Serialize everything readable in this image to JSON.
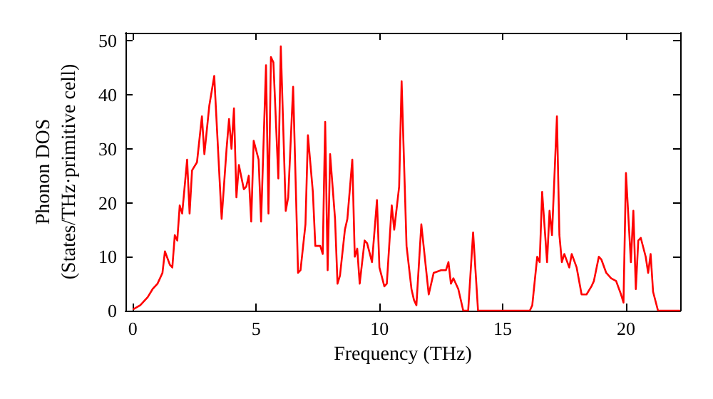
{
  "chart_data": {
    "type": "line",
    "xlabel": "Frequency (THz)",
    "ylabel": "Phonon DOS\n(States/THz·primitive cell)",
    "xlim": [
      -0.3,
      22.2
    ],
    "ylim": [
      0,
      51.5
    ],
    "xticks": [
      0,
      5,
      10,
      15,
      20
    ],
    "yticks": [
      0,
      10,
      20,
      30,
      40,
      50
    ],
    "grid": false,
    "marker": "none",
    "line_style": "solid",
    "series": [
      {
        "color": "#ff0000",
        "x": [
          0,
          0.3,
          0.6,
          0.8,
          1.0,
          1.2,
          1.3,
          1.5,
          1.6,
          1.7,
          1.8,
          1.9,
          2.0,
          2.2,
          2.3,
          2.4,
          2.6,
          2.8,
          2.9,
          3.1,
          3.3,
          3.6,
          3.8,
          3.9,
          4.0,
          4.1,
          4.2,
          4.3,
          4.5,
          4.6,
          4.7,
          4.8,
          4.9,
          5.1,
          5.2,
          5.4,
          5.5,
          5.6,
          5.7,
          5.9,
          6.0,
          6.2,
          6.3,
          6.5,
          6.7,
          6.8,
          7.0,
          7.1,
          7.3,
          7.4,
          7.6,
          7.7,
          7.8,
          7.9,
          8.0,
          8.2,
          8.3,
          8.4,
          8.6,
          8.7,
          8.9,
          9.0,
          9.1,
          9.2,
          9.4,
          9.5,
          9.7,
          9.9,
          10.0,
          10.2,
          10.3,
          10.5,
          10.6,
          10.8,
          10.9,
          11.1,
          11.3,
          11.4,
          11.5,
          11.7,
          12.0,
          12.2,
          12.5,
          12.7,
          12.8,
          12.9,
          13.0,
          13.2,
          13.4,
          13.6,
          13.8,
          14.0,
          16.1,
          16.2,
          16.4,
          16.5,
          16.6,
          16.8,
          16.9,
          17.0,
          17.2,
          17.3,
          17.4,
          17.5,
          17.7,
          17.8,
          18.0,
          18.2,
          18.4,
          18.6,
          18.7,
          18.9,
          19.0,
          19.2,
          19.4,
          19.6,
          19.8,
          19.9,
          20.0,
          20.2,
          20.3,
          20.4,
          20.5,
          20.6,
          20.8,
          20.9,
          21.0,
          21.1,
          21.3,
          22.2
        ],
        "values": [
          0.2,
          1,
          2.5,
          4,
          5,
          7,
          11,
          8.5,
          8,
          14,
          13,
          19.5,
          18,
          28,
          18,
          26,
          27.5,
          36,
          29,
          38,
          43.5,
          17,
          30,
          35.5,
          30,
          37.5,
          21,
          27,
          22.5,
          23,
          25,
          16.5,
          31.5,
          28,
          16.5,
          45.5,
          18,
          47,
          46,
          24.5,
          49,
          18.5,
          21,
          41.5,
          7,
          7.5,
          16,
          32.5,
          22,
          12,
          12,
          10.5,
          35,
          7.5,
          29,
          17,
          5,
          6.5,
          15,
          17,
          28,
          10,
          11.5,
          5,
          13,
          12.5,
          9,
          20.5,
          8,
          4.5,
          5,
          19.5,
          15,
          23,
          42.5,
          12,
          4,
          2,
          1,
          16,
          3,
          7,
          7.5,
          7.5,
          9,
          5,
          6,
          4,
          0,
          0,
          14.5,
          0,
          0,
          1,
          10,
          9,
          22,
          9,
          18.5,
          14,
          36,
          14,
          9,
          10.5,
          8,
          10.5,
          8,
          3,
          3,
          4.5,
          5.5,
          10,
          9.5,
          7,
          6,
          5.5,
          3,
          1.5,
          25.5,
          9,
          18.5,
          4,
          13,
          13.5,
          10,
          7,
          10.5,
          3.5,
          0,
          0
        ]
      }
    ]
  }
}
